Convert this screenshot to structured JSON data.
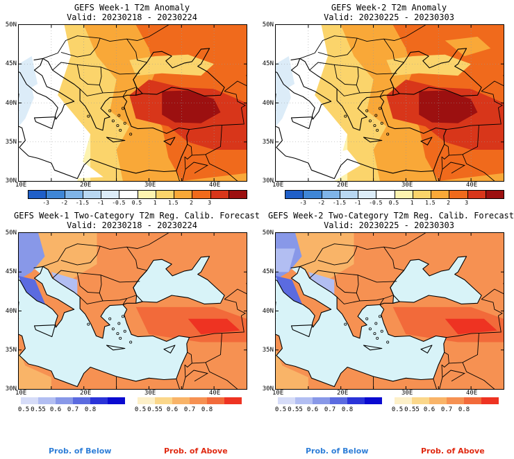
{
  "panels": [
    {
      "title": "GEFS Week-1 T2m Anomaly",
      "valid": "Valid: 20230218 - 20230224"
    },
    {
      "title": "GEFS Week-2 T2m Anomaly",
      "valid": "Valid: 20230225 - 20230303"
    },
    {
      "title": "GEFS Week-1 Two-Category T2m Reg. Calib. Forecast",
      "valid": "Valid: 20230218 - 20230224"
    },
    {
      "title": "GEFS Week-2 Two-Category T2m Reg. Calib. Forecast",
      "valid": "Valid: 20230225 - 20230303"
    }
  ],
  "axes": {
    "lat_labels": [
      "50N",
      "45N",
      "40N",
      "35N",
      "30N"
    ],
    "lon_labels": [
      "10E",
      "20E",
      "30E",
      "40E"
    ]
  },
  "anomaly_colorbar": {
    "labels": [
      "-3",
      "-2",
      "-1.5",
      "-1",
      "-0.5",
      "0.5",
      "1",
      "1.5",
      "2",
      "3"
    ],
    "colors": [
      "#1f5fc8",
      "#3f86d6",
      "#7fb4e8",
      "#b9d8f2",
      "#dcecf8",
      "#ffffff",
      "#fdf3b0",
      "#fbd46b",
      "#f9a838",
      "#f06a1c",
      "#d8361a",
      "#9c1010"
    ]
  },
  "prob_below": {
    "labels": [
      "0.5",
      "0.55",
      "0.6",
      "0.7",
      "0.8"
    ],
    "colors": [
      "#d6dcf8",
      "#b2bef2",
      "#8898e8",
      "#5b6be0",
      "#2a33d8",
      "#0a0ad0"
    ]
  },
  "prob_above": {
    "labels": [
      "0.5",
      "0.55",
      "0.6",
      "0.7",
      "0.8"
    ],
    "colors": [
      "#fdf0c8",
      "#fbd78a",
      "#f9b468",
      "#f69152",
      "#f26a3a",
      "#ee3322"
    ]
  },
  "footer": {
    "below": "Prob. of Below",
    "above": "Prob. of Above",
    "below_color": "#2f7fd8",
    "above_color": "#e02a12"
  },
  "map_colors": {
    "sea_prob": "#d8f3f8",
    "neutral": "#ffffff"
  }
}
